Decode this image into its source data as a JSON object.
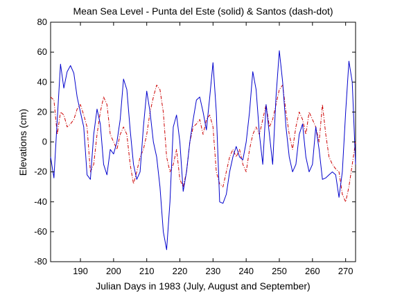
{
  "chart_data": {
    "type": "line",
    "title": "Mean Sea Level - Punta del Este (solid) & Santos (dash-dot)",
    "xlabel": "Julian Days in 1983 (July, August and September)",
    "ylabel": "Elevations (cm)",
    "xlim": [
      181,
      273
    ],
    "ylim": [
      -80,
      80
    ],
    "xticks": [
      190,
      200,
      210,
      220,
      230,
      240,
      250,
      260,
      270
    ],
    "yticks": [
      -80,
      -60,
      -40,
      -20,
      0,
      20,
      40,
      60,
      80
    ],
    "grid": false,
    "series": [
      {
        "line_style": "solid",
        "color": "#0000cc",
        "x": [
          181,
          182,
          183,
          184,
          185,
          186,
          187,
          188,
          189,
          190,
          191,
          192,
          193,
          194,
          195,
          196,
          197,
          198,
          199,
          200,
          201,
          202,
          203,
          204,
          205,
          206,
          207,
          208,
          209,
          210,
          211,
          212,
          213,
          214,
          215,
          216,
          217,
          218,
          219,
          220,
          221,
          222,
          223,
          224,
          225,
          226,
          227,
          228,
          229,
          230,
          231,
          232,
          233,
          234,
          235,
          236,
          237,
          238,
          239,
          240,
          241,
          242,
          243,
          244,
          245,
          246,
          247,
          248,
          249,
          250,
          251,
          252,
          253,
          254,
          255,
          256,
          257,
          258,
          259,
          260,
          261,
          262,
          263,
          264,
          265,
          266,
          267,
          268,
          269,
          270,
          271,
          272,
          273
        ],
        "y": [
          -10,
          -24,
          15,
          52,
          36,
          47,
          51,
          46,
          30,
          20,
          10,
          -22,
          -25,
          5,
          22,
          12,
          -15,
          -22,
          -5,
          -8,
          0,
          15,
          42,
          35,
          8,
          -15,
          -25,
          -20,
          10,
          34,
          20,
          0,
          -10,
          -30,
          -60,
          -72,
          -40,
          10,
          18,
          0,
          -33,
          -20,
          0,
          15,
          28,
          30,
          20,
          8,
          30,
          53,
          20,
          -40,
          -41,
          -35,
          -20,
          -10,
          -3,
          -10,
          -12,
          0,
          20,
          47,
          35,
          5,
          -15,
          25,
          5,
          -15,
          30,
          61,
          40,
          10,
          -10,
          -20,
          -15,
          5,
          12,
          -10,
          -20,
          -15,
          10,
          -5,
          -25,
          -24,
          -22,
          -20,
          -22,
          -37,
          -20,
          20,
          54,
          40,
          -15
        ]
      },
      {
        "line_style": "dash-dot",
        "color": "#cc0000",
        "x": [
          181,
          182,
          183,
          184,
          185,
          186,
          187,
          188,
          189,
          190,
          191,
          192,
          193,
          194,
          195,
          196,
          197,
          198,
          199,
          200,
          201,
          202,
          203,
          204,
          205,
          206,
          207,
          208,
          209,
          210,
          211,
          212,
          213,
          214,
          215,
          216,
          217,
          218,
          219,
          220,
          221,
          222,
          223,
          224,
          225,
          226,
          227,
          228,
          229,
          230,
          231,
          232,
          233,
          234,
          235,
          236,
          237,
          238,
          239,
          240,
          241,
          242,
          243,
          244,
          245,
          246,
          247,
          248,
          249,
          250,
          251,
          252,
          253,
          254,
          255,
          256,
          257,
          258,
          259,
          260,
          261,
          262,
          263,
          264,
          265,
          266,
          267,
          268,
          269,
          270,
          271,
          272,
          273
        ],
        "y": [
          30,
          28,
          5,
          20,
          18,
          10,
          12,
          15,
          22,
          25,
          18,
          10,
          -20,
          -15,
          5,
          20,
          30,
          25,
          5,
          0,
          -5,
          5,
          10,
          5,
          -15,
          -28,
          -20,
          -10,
          -5,
          5,
          20,
          30,
          38,
          35,
          20,
          -10,
          -20,
          -15,
          -5,
          -25,
          -30,
          -20,
          0,
          10,
          12,
          15,
          5,
          15,
          18,
          10,
          -20,
          -28,
          -30,
          -20,
          -10,
          -5,
          -10,
          -5,
          -15,
          -20,
          -5,
          5,
          10,
          5,
          15,
          25,
          10,
          15,
          25,
          35,
          38,
          20,
          5,
          -5,
          10,
          20,
          15,
          5,
          20,
          15,
          10,
          0,
          25,
          5,
          -10,
          -15,
          -18,
          -20,
          -35,
          -40,
          -30,
          -15,
          0
        ]
      }
    ]
  }
}
